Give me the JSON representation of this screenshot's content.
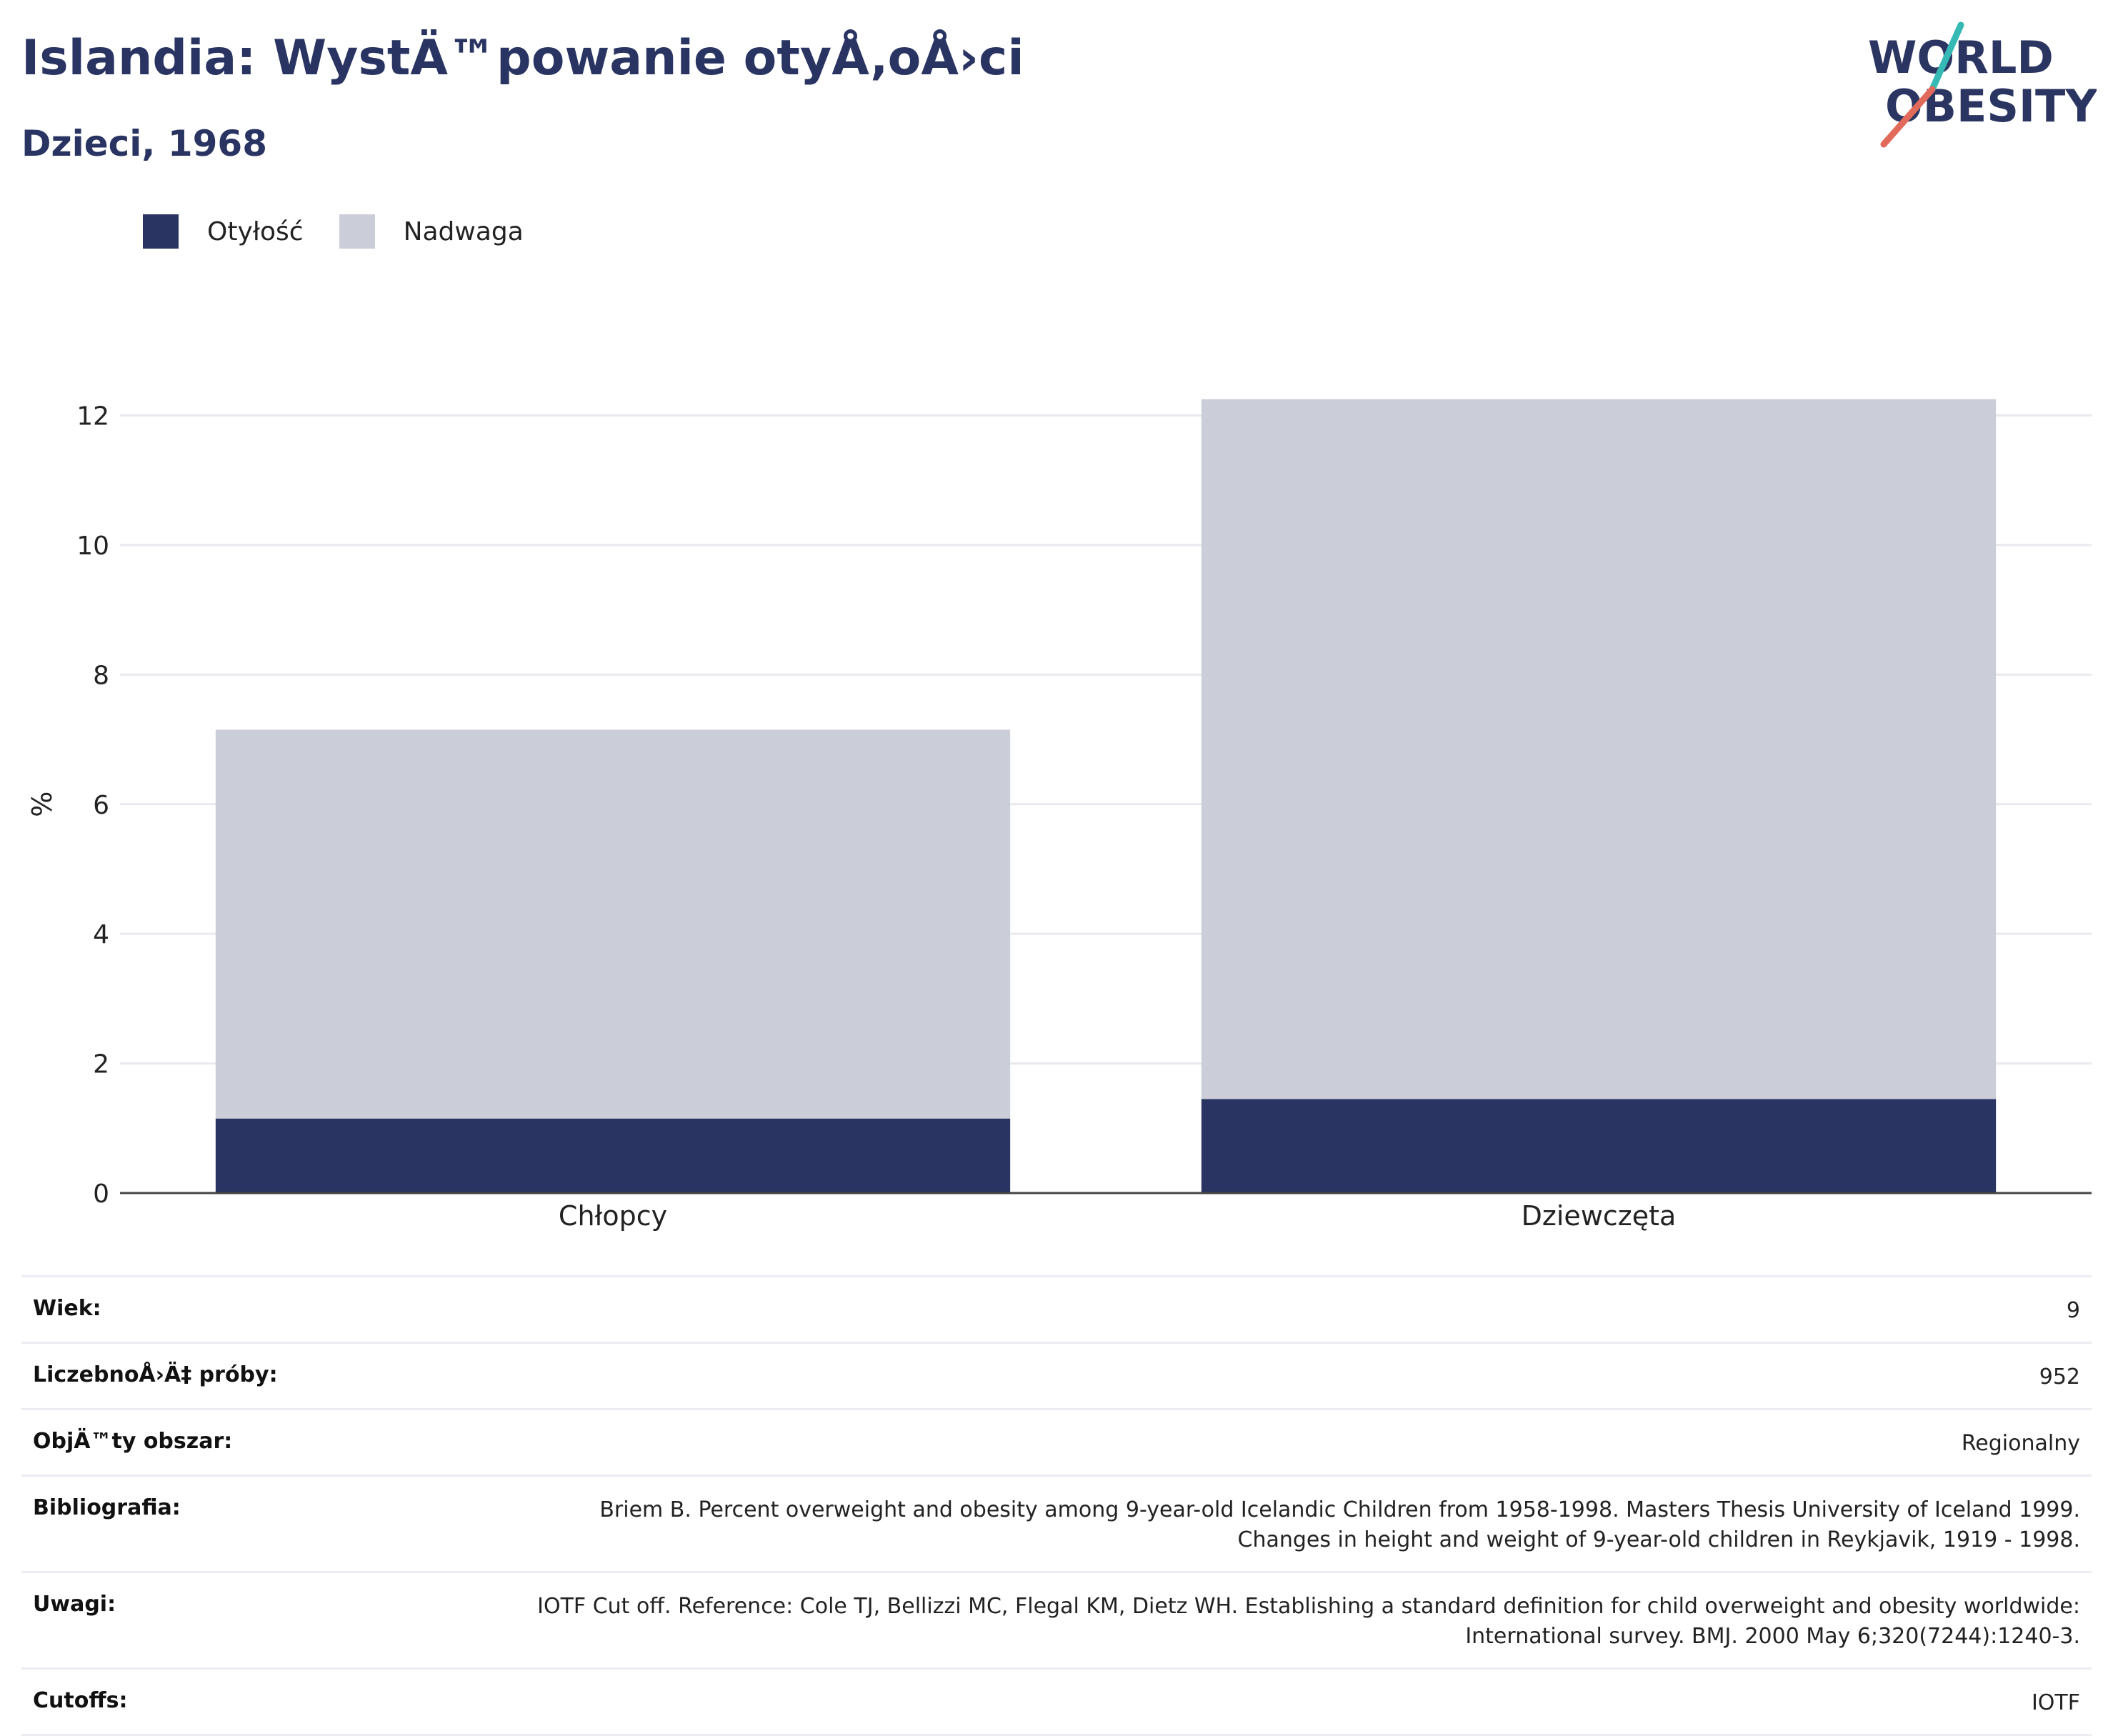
{
  "header": {
    "title": "Islandia: WystÄ™powanie otyÅ‚oÅ›ci",
    "subtitle": "Dzieci, 1968"
  },
  "logo": {
    "line1": "WORLD",
    "line2": "OBESITY",
    "colors": {
      "text": "#2b3561",
      "accent_teal": "#35b9b5",
      "accent_red": "#e26a5a"
    }
  },
  "colors": {
    "obesity": "#293462",
    "overweight": "#cbcdd8",
    "grid": "#e9e9ef",
    "axis": "#444444"
  },
  "chart_data": {
    "type": "bar",
    "stacked": true,
    "categories": [
      "Chłopcy",
      "Dziewczęta"
    ],
    "series": [
      {
        "name": "Otyłość",
        "values": [
          1.15,
          1.45
        ],
        "color": "#293462"
      },
      {
        "name": "Nadwaga",
        "values": [
          6.0,
          10.8
        ],
        "color": "#cbcdd8"
      }
    ],
    "ylabel": "%",
    "ylim": [
      0,
      12.4
    ],
    "yticks": [
      0,
      2,
      4,
      6,
      8,
      10,
      12
    ],
    "grid": true,
    "legend_position": "top-left"
  },
  "info": [
    {
      "label": "Wiek:",
      "value": "9"
    },
    {
      "label": "LiczebnoÅ›Ä‡ próby:",
      "value": "952"
    },
    {
      "label": "ObjÄ™ty obszar:",
      "value": "Regionalny"
    },
    {
      "label": "Bibliografia:",
      "value": "Briem B. Percent overweight and obesity among 9-year-old Icelandic Children from 1958-1998. Masters Thesis University of Iceland 1999. Changes in height and weight of 9-year-old children in Reykjavik, 1919 - 1998."
    },
    {
      "label": "Uwagi:",
      "value": "IOTF Cut off. Reference: Cole TJ, Bellizzi MC, Flegal KM, Dietz WH. Establishing a standard definition for child overweight and obesity worldwide: International survey. BMJ. 2000 May 6;320(7244):1240-3."
    },
    {
      "label": "Cutoffs:",
      "value": "IOTF"
    }
  ]
}
